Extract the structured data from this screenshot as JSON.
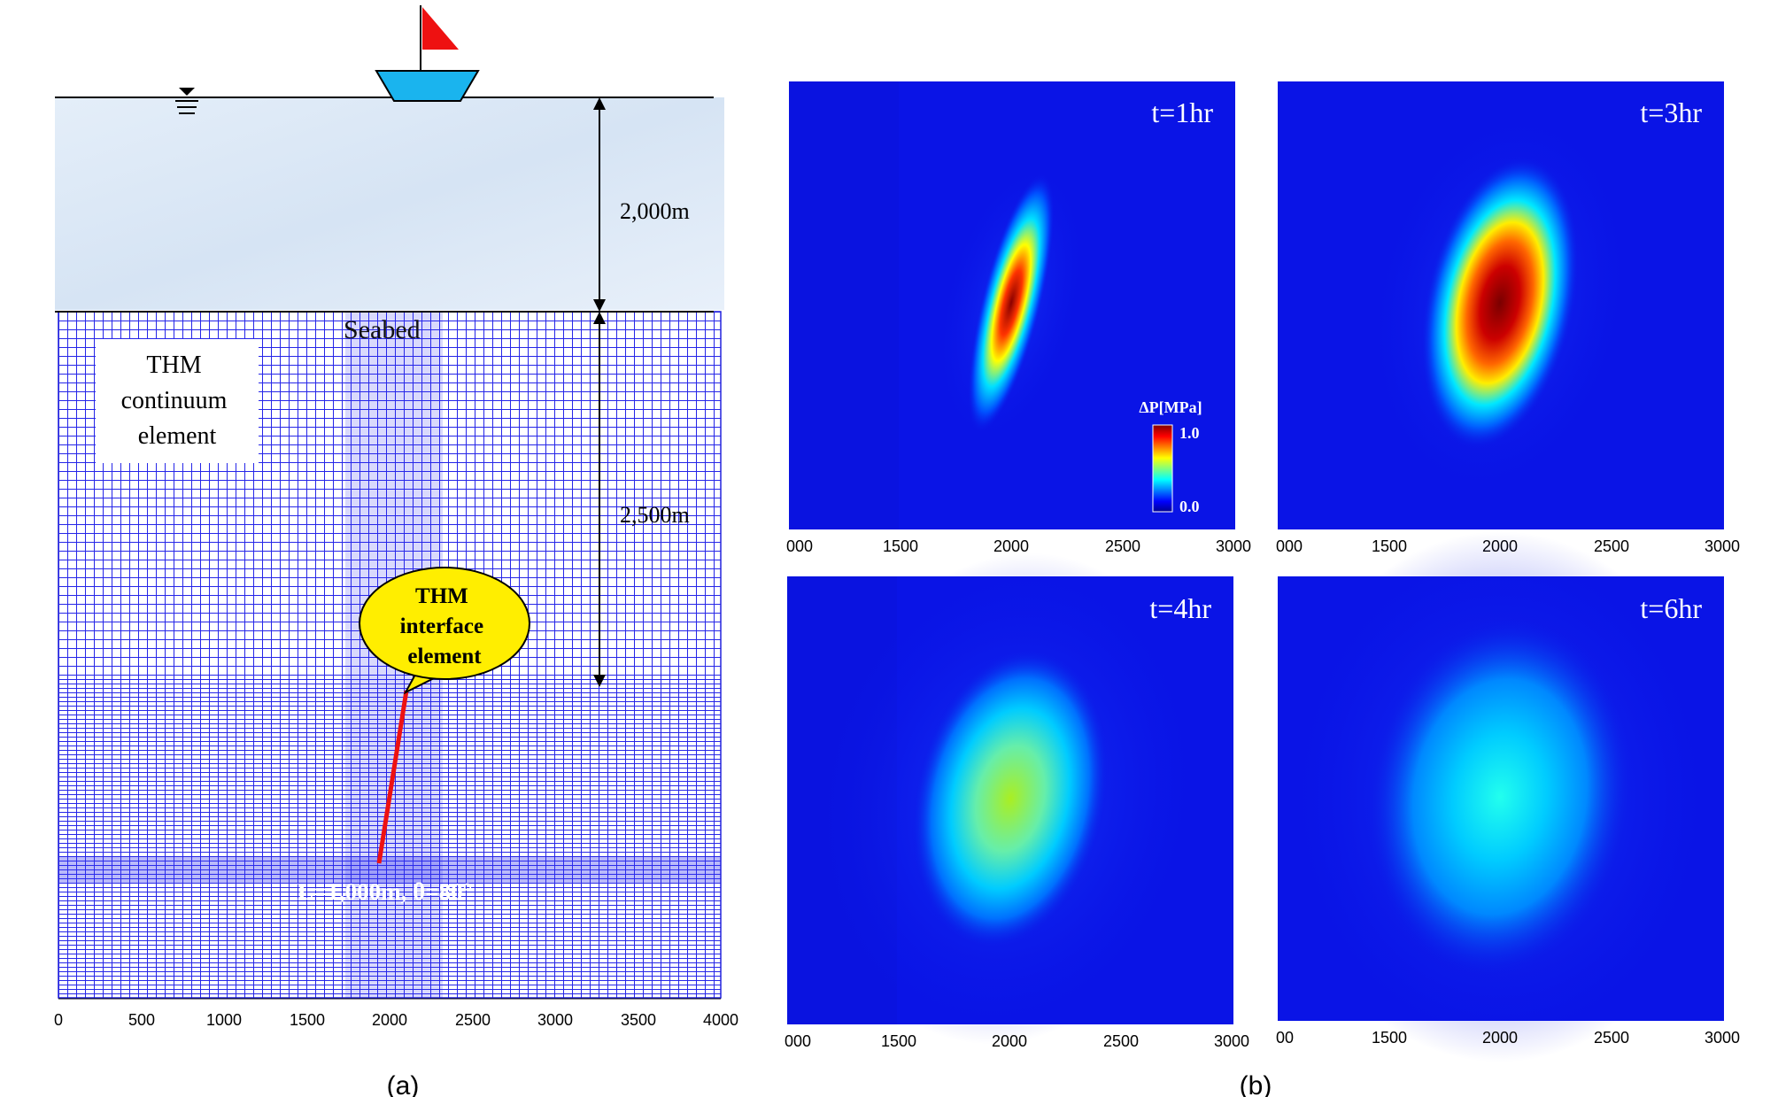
{
  "panel_a": {
    "caption": "(a)",
    "depth_labels": {
      "water": "2,000m",
      "rock": "2,500m"
    },
    "seabed_label": "Seabed",
    "continuum_label": [
      "THM",
      "continuum",
      "element"
    ],
    "interface_label": [
      "THM",
      "interface",
      "element"
    ],
    "fault_label": "L=1,000m, θ=80°",
    "x_ticks": [
      "0",
      "500",
      "1000",
      "1500",
      "2000",
      "2500",
      "3000",
      "3500",
      "4000"
    ],
    "colors": {
      "mesh": "#2222ee",
      "fault": "#ee1111",
      "water": "#dde8f6",
      "boat": "#1ab4ee",
      "flag": "#ee1111",
      "bubble": "#ffee00"
    }
  },
  "panel_b": {
    "caption": "(b)",
    "x_ticks": [
      "000",
      "1500",
      "2000",
      "2500",
      "3000"
    ],
    "x_ticks_lower_right": [
      "00",
      "1500",
      "2000",
      "2500",
      "3000"
    ],
    "colorbar": {
      "title": "ΔP[MPa]",
      "max": "1.0",
      "min": "0.0"
    },
    "times": [
      "t=1hr",
      "t=3hr",
      "t=4hr",
      "t=6hr"
    ]
  },
  "icons": [
    "boat-icon",
    "flag-icon",
    "water-level-icon"
  ]
}
